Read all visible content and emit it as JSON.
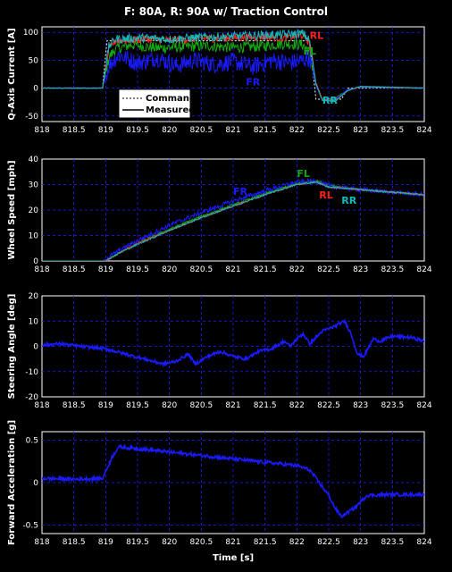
{
  "title": "F: 80A, R: 90A w/ Traction Control",
  "colors": {
    "FL": "#11aa11",
    "FR": "#1a1aff",
    "RL": "#ff2020",
    "RR": "#11bbbb",
    "grid": "#2020ff",
    "signal": "#1a1aff"
  },
  "chart_data": [
    {
      "type": "line",
      "ylabel": "Q-Axis Current [A]",
      "xlabel": "",
      "xlim": [
        818,
        824
      ],
      "ylim": [
        -60,
        110
      ],
      "xticks": [
        "818",
        "818.5",
        "819",
        "819.5",
        "820",
        "820.5",
        "821",
        "821.5",
        "822",
        "822.5",
        "823",
        "823.5",
        "824"
      ],
      "yticks": [
        "100",
        "50",
        "0",
        "-50"
      ],
      "legend": [
        "Command",
        "Measured"
      ],
      "series": [
        {
          "name": "FL",
          "points": [
            [
              818,
              0
            ],
            [
              818.95,
              0
            ],
            [
              819.05,
              55
            ],
            [
              819.15,
              70
            ],
            [
              819.4,
              78
            ],
            [
              819.8,
              72
            ],
            [
              820.2,
              74
            ],
            [
              820.6,
              76
            ],
            [
              821,
              73
            ],
            [
              821.4,
              75
            ],
            [
              821.8,
              80
            ],
            [
              822.1,
              78
            ],
            [
              822.2,
              65
            ],
            [
              822.3,
              5
            ],
            [
              822.4,
              -20
            ],
            [
              822.6,
              -18
            ],
            [
              822.8,
              -3
            ],
            [
              823,
              2
            ],
            [
              824,
              0
            ]
          ]
        },
        {
          "name": "FR",
          "points": [
            [
              818,
              0
            ],
            [
              818.95,
              0
            ],
            [
              819.05,
              40
            ],
            [
              819.2,
              60
            ],
            [
              819.5,
              45
            ],
            [
              819.8,
              55
            ],
            [
              820.1,
              40
            ],
            [
              820.4,
              50
            ],
            [
              820.7,
              42
            ],
            [
              821,
              48
            ],
            [
              821.3,
              38
            ],
            [
              821.6,
              50
            ],
            [
              821.9,
              45
            ],
            [
              822.1,
              50
            ],
            [
              822.2,
              55
            ],
            [
              822.3,
              5
            ],
            [
              822.4,
              -20
            ],
            [
              822.6,
              -20
            ],
            [
              822.8,
              -3
            ],
            [
              823,
              2
            ],
            [
              824,
              0
            ]
          ]
        },
        {
          "name": "RL",
          "points": [
            [
              818,
              0
            ],
            [
              818.95,
              0
            ],
            [
              819.05,
              70
            ],
            [
              819.15,
              85
            ],
            [
              819.6,
              88
            ],
            [
              820,
              86
            ],
            [
              820.5,
              89
            ],
            [
              821,
              90
            ],
            [
              821.5,
              92
            ],
            [
              821.8,
              90
            ],
            [
              822.1,
              95
            ],
            [
              822.2,
              80
            ],
            [
              822.3,
              10
            ],
            [
              822.4,
              -20
            ],
            [
              822.6,
              -22
            ],
            [
              822.8,
              -5
            ],
            [
              823,
              3
            ],
            [
              824,
              0
            ]
          ]
        },
        {
          "name": "RR",
          "points": [
            [
              818,
              0
            ],
            [
              818.95,
              0
            ],
            [
              819.05,
              75
            ],
            [
              819.15,
              88
            ],
            [
              819.6,
              90
            ],
            [
              820,
              88
            ],
            [
              820.5,
              91
            ],
            [
              821,
              93
            ],
            [
              821.5,
              95
            ],
            [
              821.8,
              96
            ],
            [
              822.1,
              98
            ],
            [
              822.2,
              85
            ],
            [
              822.3,
              8
            ],
            [
              822.4,
              -22
            ],
            [
              822.6,
              -24
            ],
            [
              822.8,
              -4
            ],
            [
              823,
              3
            ],
            [
              824,
              0
            ]
          ]
        }
      ]
    },
    {
      "type": "line",
      "ylabel": "Wheel Speed [mph]",
      "xlabel": "",
      "xlim": [
        818,
        824
      ],
      "ylim": [
        0,
        40
      ],
      "xticks": [
        "818",
        "818.5",
        "819",
        "819.5",
        "820",
        "820.5",
        "821",
        "821.5",
        "822",
        "822.5",
        "823",
        "823.5",
        "824"
      ],
      "yticks": [
        "40",
        "30",
        "20",
        "10",
        "0"
      ],
      "series": [
        {
          "name": "FL",
          "points": [
            [
              818,
              0
            ],
            [
              819,
              0
            ],
            [
              819.2,
              3
            ],
            [
              819.5,
              7
            ],
            [
              820,
              12.5
            ],
            [
              820.5,
              17.5
            ],
            [
              821,
              22
            ],
            [
              821.5,
              26.5
            ],
            [
              822,
              30.5
            ],
            [
              822.3,
              31.5
            ],
            [
              822.5,
              30
            ],
            [
              822.8,
              28.5
            ],
            [
              823,
              28
            ],
            [
              823.5,
              27
            ],
            [
              824,
              26
            ]
          ]
        },
        {
          "name": "FR",
          "points": [
            [
              818,
              0
            ],
            [
              818.95,
              0
            ],
            [
              819.2,
              4
            ],
            [
              819.5,
              8
            ],
            [
              820,
              14
            ],
            [
              820.5,
              19
            ],
            [
              821,
              23.5
            ],
            [
              821.5,
              27.5
            ],
            [
              822,
              31
            ],
            [
              822.3,
              31.5
            ],
            [
              822.5,
              29.5
            ],
            [
              822.8,
              28.5
            ],
            [
              823,
              28
            ],
            [
              823.5,
              27
            ],
            [
              824,
              26
            ]
          ]
        },
        {
          "name": "RL",
          "points": [
            [
              818,
              0
            ],
            [
              819,
              0
            ],
            [
              819.2,
              3
            ],
            [
              819.5,
              7
            ],
            [
              820,
              12
            ],
            [
              820.5,
              17
            ],
            [
              821,
              21.5
            ],
            [
              821.5,
              26
            ],
            [
              822,
              30
            ],
            [
              822.3,
              31
            ],
            [
              822.5,
              29
            ],
            [
              822.8,
              28.5
            ],
            [
              823,
              28
            ],
            [
              823.5,
              27
            ],
            [
              824,
              26
            ]
          ]
        },
        {
          "name": "RR",
          "points": [
            [
              818,
              0
            ],
            [
              819,
              0
            ],
            [
              819.2,
              3
            ],
            [
              819.5,
              6.5
            ],
            [
              820,
              12
            ],
            [
              820.5,
              17
            ],
            [
              821,
              21.5
            ],
            [
              821.5,
              26
            ],
            [
              822,
              30
            ],
            [
              822.3,
              31
            ],
            [
              822.5,
              29
            ],
            [
              822.8,
              28.5
            ],
            [
              823,
              28
            ],
            [
              823.5,
              27
            ],
            [
              824,
              26
            ]
          ]
        }
      ]
    },
    {
      "type": "line",
      "ylabel": "Steering Angle [deg]",
      "xlabel": "",
      "xlim": [
        818,
        824
      ],
      "ylim": [
        -20,
        20
      ],
      "xticks": [
        "818",
        "818.5",
        "819",
        "819.5",
        "820",
        "820.5",
        "821",
        "821.5",
        "822",
        "822.5",
        "823",
        "823.5",
        "824"
      ],
      "yticks": [
        "20",
        "10",
        "0",
        "-10",
        "-20"
      ],
      "series": [
        {
          "name": "Steering",
          "points": [
            [
              818,
              0.5
            ],
            [
              818.3,
              1
            ],
            [
              818.6,
              0
            ],
            [
              819,
              -1
            ],
            [
              819.3,
              -3
            ],
            [
              819.6,
              -5
            ],
            [
              819.9,
              -7
            ],
            [
              820.1,
              -6
            ],
            [
              820.3,
              -3
            ],
            [
              820.4,
              -7
            ],
            [
              820.6,
              -4
            ],
            [
              820.8,
              -2
            ],
            [
              821,
              -4
            ],
            [
              821.2,
              -5
            ],
            [
              821.4,
              -2
            ],
            [
              821.6,
              -1
            ],
            [
              821.8,
              2
            ],
            [
              821.9,
              0
            ],
            [
              822,
              3
            ],
            [
              822.1,
              5
            ],
            [
              822.2,
              1
            ],
            [
              822.4,
              6
            ],
            [
              822.6,
              8
            ],
            [
              822.75,
              10
            ],
            [
              822.85,
              5
            ],
            [
              822.95,
              -3
            ],
            [
              823.05,
              -4
            ],
            [
              823.2,
              3
            ],
            [
              823.3,
              2
            ],
            [
              823.5,
              4
            ],
            [
              823.8,
              3.5
            ],
            [
              824,
              2
            ]
          ]
        }
      ]
    },
    {
      "type": "line",
      "ylabel": "Forward Acceleration [g]",
      "xlabel": "Time [s]",
      "xlim": [
        818,
        824
      ],
      "ylim": [
        -0.6,
        0.6
      ],
      "xticks": [
        "818",
        "818.5",
        "819",
        "819.5",
        "820",
        "820.5",
        "821",
        "821.5",
        "822",
        "822.5",
        "823",
        "823.5",
        "824"
      ],
      "yticks": [
        "0.5",
        "0",
        "-0.5"
      ],
      "series": [
        {
          "name": "Acceleration",
          "points": [
            [
              818,
              0.05
            ],
            [
              818.5,
              0.04
            ],
            [
              818.95,
              0.05
            ],
            [
              819.1,
              0.3
            ],
            [
              819.2,
              0.42
            ],
            [
              819.5,
              0.4
            ],
            [
              820,
              0.36
            ],
            [
              820.5,
              0.32
            ],
            [
              821,
              0.28
            ],
            [
              821.5,
              0.24
            ],
            [
              822,
              0.2
            ],
            [
              822.2,
              0.15
            ],
            [
              822.35,
              0
            ],
            [
              822.5,
              -0.15
            ],
            [
              822.6,
              -0.3
            ],
            [
              822.7,
              -0.4
            ],
            [
              822.9,
              -0.3
            ],
            [
              823.1,
              -0.15
            ],
            [
              823.5,
              -0.14
            ],
            [
              824,
              -0.14
            ]
          ]
        }
      ]
    }
  ],
  "annotations": {
    "p1": [
      {
        "text": "RL",
        "series": "RL",
        "x": 822.2,
        "y": 88
      },
      {
        "text": "FL",
        "series": "FL",
        "x": 822.1,
        "y": 60
      },
      {
        "text": "FR",
        "series": "FR",
        "x": 821.2,
        "y": 5
      },
      {
        "text": "RR",
        "series": "RR",
        "x": 822.4,
        "y": -28
      }
    ],
    "p2": [
      {
        "text": "FR",
        "series": "FR",
        "x": 821.0,
        "y": 26
      },
      {
        "text": "FL",
        "series": "FL",
        "x": 822.0,
        "y": 33
      },
      {
        "text": "RL",
        "series": "RL",
        "x": 822.35,
        "y": 24.5
      },
      {
        "text": "RR",
        "series": "RR",
        "x": 822.7,
        "y": 22.5
      }
    ]
  }
}
